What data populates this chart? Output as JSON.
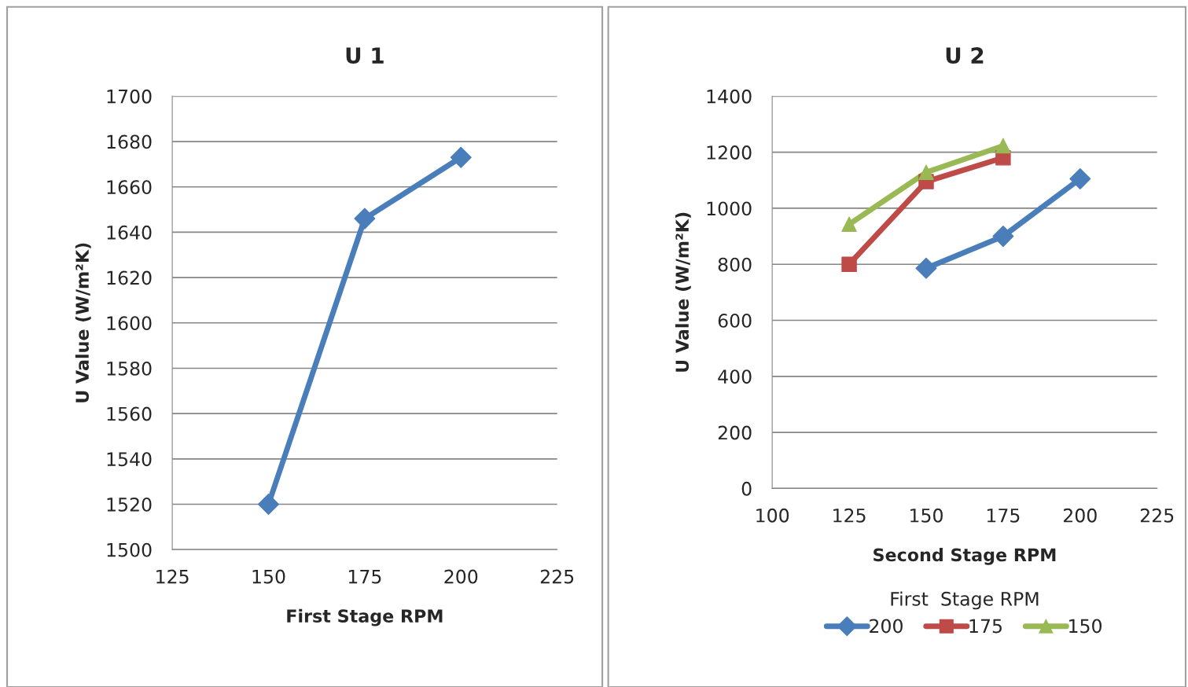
{
  "chart_data": [
    {
      "type": "line",
      "title": "U 1",
      "xlabel": "First Stage RPM",
      "ylabel": "U Value (W/m²K)",
      "x": [
        150,
        175,
        200
      ],
      "series": [
        {
          "color": "#4a7ebb",
          "values": [
            1520,
            1646,
            1673
          ],
          "marker": "diamond"
        }
      ],
      "xlim": [
        125,
        225
      ],
      "xticks": [
        125,
        150,
        175,
        200,
        225
      ],
      "ylim": [
        1500,
        1700
      ],
      "yticks": [
        1500,
        1520,
        1540,
        1560,
        1580,
        1600,
        1620,
        1640,
        1660,
        1680,
        1700
      ],
      "grid": "y",
      "legend": false
    },
    {
      "type": "line",
      "title": "U 2",
      "xlabel": "Second Stage RPM",
      "ylabel": "U Value (W/m²K)",
      "legend_title": "First  Stage RPM",
      "series": [
        {
          "name": "200",
          "color": "#4a7ebb",
          "x": [
            150,
            175,
            200
          ],
          "values": [
            786,
            900,
            1105
          ],
          "marker": "diamond"
        },
        {
          "name": "175",
          "color": "#be4b48",
          "x": [
            125,
            150,
            175
          ],
          "values": [
            800,
            1095,
            1180
          ],
          "marker": "square"
        },
        {
          "name": "150",
          "color": "#98b954",
          "x": [
            125,
            150,
            175
          ],
          "values": [
            943,
            1128,
            1223
          ],
          "marker": "triangle"
        }
      ],
      "xlim": [
        100,
        225
      ],
      "xticks": [
        100,
        125,
        150,
        175,
        200,
        225
      ],
      "ylim": [
        0,
        1400
      ],
      "yticks": [
        0,
        200,
        400,
        600,
        800,
        1000,
        1200,
        1400
      ],
      "grid": "y",
      "legend": "bottom"
    }
  ]
}
